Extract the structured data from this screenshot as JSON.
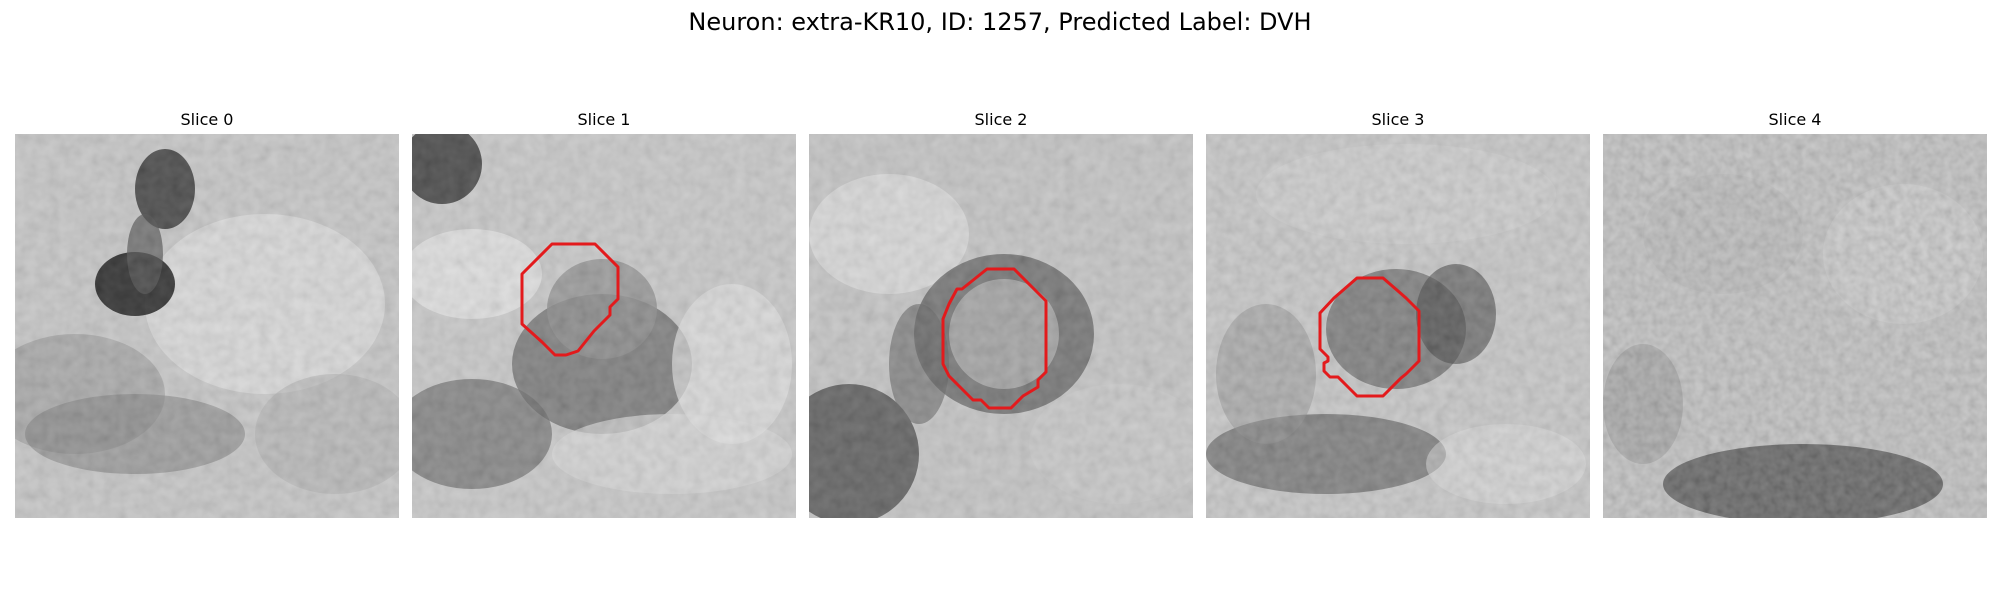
{
  "figure": {
    "title": "Neuron: extra-KR10, ID: 1257, Predicted Label: DVH"
  },
  "panels": [
    {
      "title": "Slice 0",
      "has_roi": false
    },
    {
      "title": "Slice 1",
      "has_roi": true
    },
    {
      "title": "Slice 2",
      "has_roi": true
    },
    {
      "title": "Slice 3",
      "has_roi": true
    },
    {
      "title": "Slice 4",
      "has_roi": false
    }
  ],
  "colors": {
    "roi_outline": "#e31a1c",
    "colormap": "gray"
  }
}
